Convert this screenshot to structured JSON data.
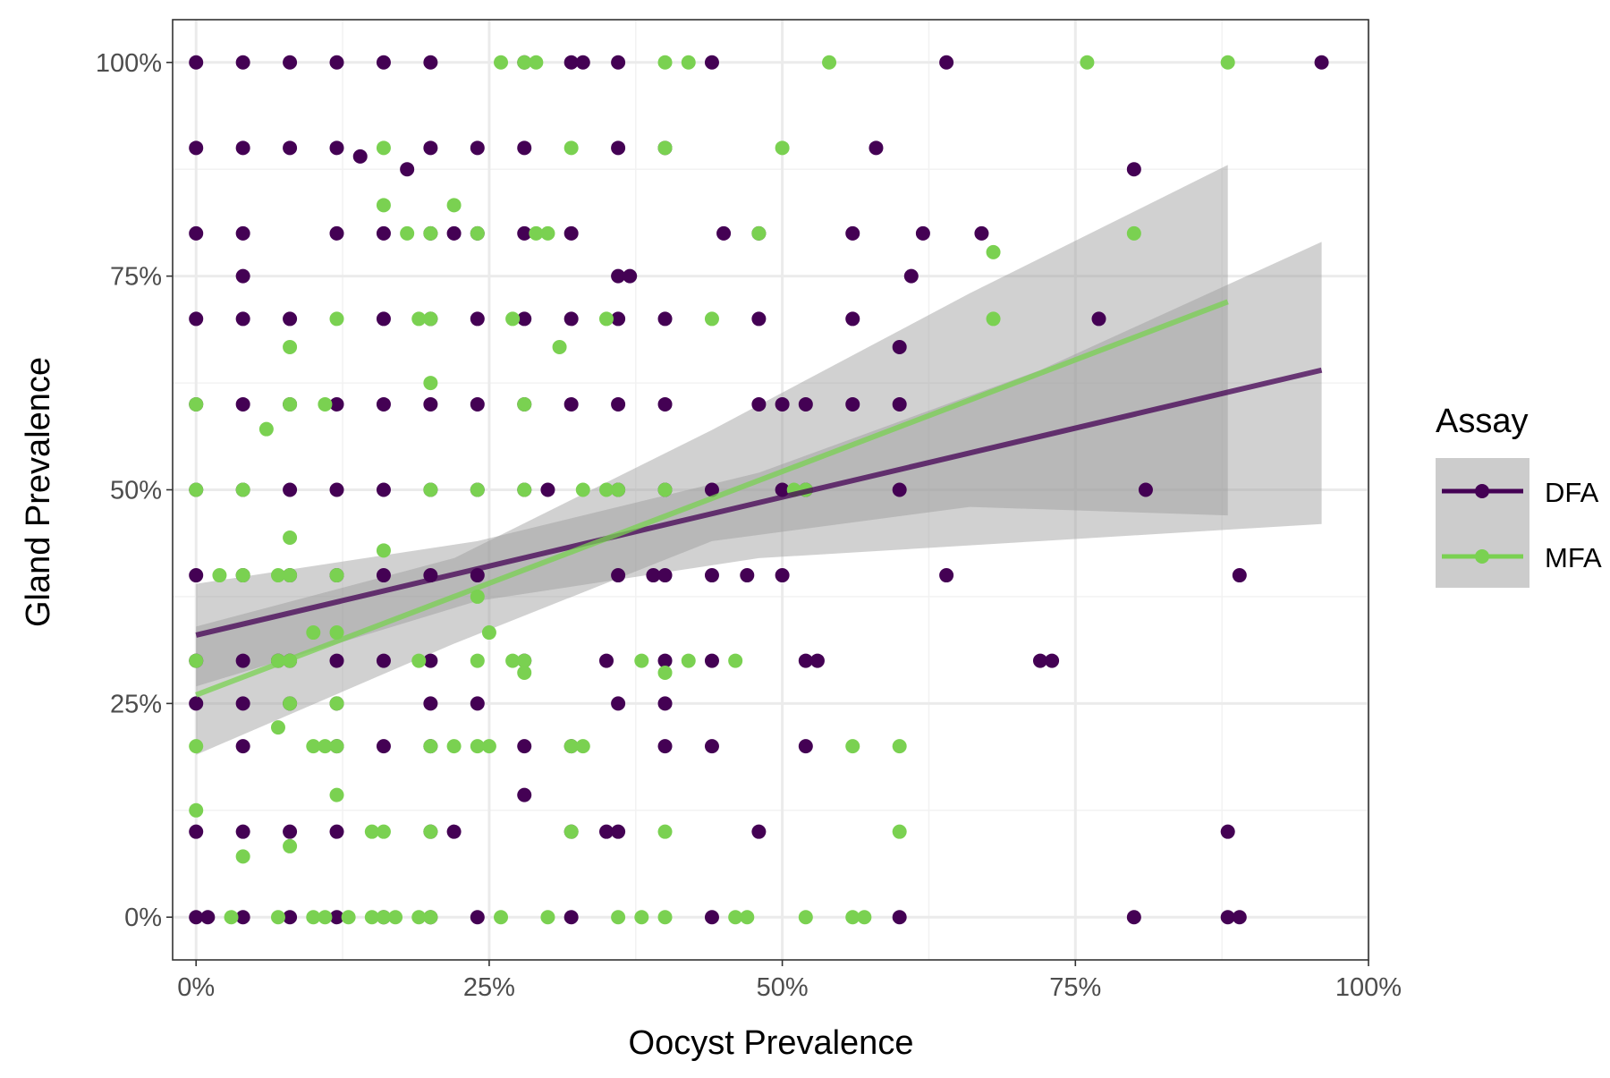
{
  "chart_data": {
    "type": "scatter",
    "xlabel": "Oocyst Prevalence",
    "ylabel": "Gland Prevalence",
    "xlim": [
      -0.02,
      1.0
    ],
    "ylim": [
      -0.05,
      1.05
    ],
    "x_ticks": [
      0,
      0.25,
      0.5,
      0.75,
      1.0
    ],
    "x_tick_labels": [
      "0%",
      "25%",
      "50%",
      "75%",
      "100%"
    ],
    "y_ticks": [
      0,
      0.25,
      0.5,
      0.75,
      1.0
    ],
    "y_tick_labels": [
      "0%",
      "25%",
      "50%",
      "75%",
      "100%"
    ],
    "grid": true,
    "legend": {
      "title": "Assay",
      "placement": "right",
      "entries": [
        "DFA",
        "MFA"
      ]
    },
    "colors": {
      "DFA": "#440154",
      "MFA": "#7AD151",
      "ribbon": "#999999"
    },
    "series": [
      {
        "name": "DFA",
        "color": "#440154",
        "x": [
          0,
          0.04,
          0.08,
          0.12,
          0.16,
          0.2,
          0.28,
          0.32,
          0.33,
          0.36,
          0.44,
          0.64,
          0.96,
          0,
          0.04,
          0.08,
          0.12,
          0.14,
          0.18,
          0.2,
          0.24,
          0.28,
          0.36,
          0.4,
          0.58,
          0,
          0.04,
          0.12,
          0.16,
          0.2,
          0.22,
          0.24,
          0.28,
          0.32,
          0.45,
          0.48,
          0.56,
          0.62,
          0.67,
          0.8,
          0.04,
          0.36,
          0.37,
          0.61,
          0,
          0.04,
          0.08,
          0.16,
          0.2,
          0.24,
          0.28,
          0.32,
          0.36,
          0.4,
          0.48,
          0.56,
          0.6,
          0.77,
          0,
          0.04,
          0.08,
          0.12,
          0.16,
          0.2,
          0.24,
          0.28,
          0.32,
          0.36,
          0.4,
          0.48,
          0.5,
          0.52,
          0.56,
          0.6,
          0,
          0.04,
          0.08,
          0.12,
          0.16,
          0.2,
          0.24,
          0.28,
          0.3,
          0.36,
          0.4,
          0.44,
          0.5,
          0.52,
          0.6,
          0.81,
          0,
          0.04,
          0.08,
          0.12,
          0.16,
          0.2,
          0.24,
          0.36,
          0.39,
          0.4,
          0.44,
          0.47,
          0.5,
          0.64,
          0.89,
          0,
          0.04,
          0.07,
          0.08,
          0.12,
          0.16,
          0.2,
          0.28,
          0.35,
          0.4,
          0.44,
          0.52,
          0.53,
          0.72,
          0.73,
          0,
          0.04,
          0.08,
          0.12,
          0.2,
          0.24,
          0.36,
          0.4,
          0.04,
          0.12,
          0.16,
          0.2,
          0.28,
          0.32,
          0.4,
          0.44,
          0.52,
          0,
          0.04,
          0.08,
          0.12,
          0.2,
          0.22,
          0.28,
          0.32,
          0.35,
          0.36,
          0.48,
          0.88,
          0,
          0.01,
          0.04,
          0.08,
          0.12,
          0.16,
          0.2,
          0.24,
          0.32,
          0.44,
          0.6,
          0.8,
          0.88,
          0.89
        ],
        "y": [
          1,
          1,
          1,
          1,
          1,
          1,
          1,
          1,
          1,
          1,
          1,
          1,
          1,
          0.9,
          0.9,
          0.9,
          0.9,
          0.89,
          0.875,
          0.9,
          0.9,
          0.9,
          0.9,
          0.9,
          0.9,
          0.8,
          0.8,
          0.8,
          0.8,
          0.8,
          0.8,
          0.8,
          0.8,
          0.8,
          0.8,
          0.8,
          0.8,
          0.8,
          0.8,
          0.875,
          0.75,
          0.75,
          0.75,
          0.75,
          0.7,
          0.7,
          0.7,
          0.7,
          0.7,
          0.7,
          0.7,
          0.7,
          0.7,
          0.7,
          0.7,
          0.7,
          0.667,
          0.7,
          0.6,
          0.6,
          0.6,
          0.6,
          0.6,
          0.6,
          0.6,
          0.6,
          0.6,
          0.6,
          0.6,
          0.6,
          0.6,
          0.6,
          0.6,
          0.6,
          0.5,
          0.5,
          0.5,
          0.5,
          0.5,
          0.5,
          0.5,
          0.5,
          0.5,
          0.5,
          0.5,
          0.5,
          0.5,
          0.5,
          0.5,
          0.5,
          0.4,
          0.4,
          0.4,
          0.4,
          0.4,
          0.4,
          0.4,
          0.4,
          0.4,
          0.4,
          0.4,
          0.4,
          0.4,
          0.4,
          0.4,
          0.3,
          0.3,
          0.3,
          0.3,
          0.3,
          0.3,
          0.3,
          0.3,
          0.3,
          0.3,
          0.3,
          0.3,
          0.3,
          0.3,
          0.3,
          0.25,
          0.25,
          0.25,
          0.25,
          0.25,
          0.25,
          0.25,
          0.25,
          0.2,
          0.2,
          0.2,
          0.2,
          0.2,
          0.2,
          0.2,
          0.2,
          0.2,
          0.1,
          0.1,
          0.1,
          0.1,
          0.1,
          0.1,
          0.143,
          0.1,
          0.1,
          0.1,
          0.1,
          0.1,
          0,
          0,
          0,
          0,
          0,
          0,
          0,
          0,
          0,
          0,
          0,
          0,
          0,
          0
        ]
      },
      {
        "name": "MFA",
        "color": "#7AD151",
        "x": [
          0.26,
          0.28,
          0.29,
          0.4,
          0.42,
          0.54,
          0.76,
          0.88,
          0.16,
          0.32,
          0.4,
          0.5,
          0.16,
          0.22,
          0.18,
          0.2,
          0.24,
          0.29,
          0.3,
          0.48,
          0.8,
          0.68,
          0.12,
          0.19,
          0.2,
          0.27,
          0.31,
          0.35,
          0.44,
          0.68,
          0.08,
          0,
          0.08,
          0.11,
          0.2,
          0.28,
          0.06,
          0,
          0.04,
          0.2,
          0.24,
          0.28,
          0.33,
          0.35,
          0.36,
          0.4,
          0.51,
          0.52,
          0.08,
          0.16,
          0.02,
          0.04,
          0.08,
          0.12,
          0.24,
          0.07,
          0,
          0.07,
          0.08,
          0.1,
          0.12,
          0.19,
          0.24,
          0.25,
          0.27,
          0.28,
          0.38,
          0.4,
          0.42,
          0.46,
          0.08,
          0.12,
          0.28,
          0.07,
          0,
          0.1,
          0.11,
          0.12,
          0.2,
          0.22,
          0.24,
          0.25,
          0.32,
          0.33,
          0.56,
          0.6,
          0,
          0.12,
          0.15,
          0.16,
          0.2,
          0.32,
          0.4,
          0.6,
          0.04,
          0.08,
          0.03,
          0.07,
          0.1,
          0.11,
          0.13,
          0.15,
          0.16,
          0.17,
          0.19,
          0.2,
          0.26,
          0.3,
          0.36,
          0.38,
          0.4,
          0.46,
          0.47,
          0.52,
          0.56,
          0.57
        ],
        "y": [
          1,
          1,
          1,
          1,
          1,
          1,
          1,
          1,
          0.9,
          0.9,
          0.9,
          0.9,
          0.833,
          0.833,
          0.8,
          0.8,
          0.8,
          0.8,
          0.8,
          0.8,
          0.8,
          0.778,
          0.7,
          0.7,
          0.7,
          0.7,
          0.667,
          0.7,
          0.7,
          0.7,
          0.667,
          0.6,
          0.6,
          0.6,
          0.625,
          0.6,
          0.571,
          0.5,
          0.5,
          0.5,
          0.5,
          0.5,
          0.5,
          0.5,
          0.5,
          0.5,
          0.5,
          0.5,
          0.444,
          0.429,
          0.4,
          0.4,
          0.4,
          0.4,
          0.375,
          0.4,
          0.3,
          0.3,
          0.3,
          0.333,
          0.333,
          0.3,
          0.3,
          0.333,
          0.3,
          0.3,
          0.3,
          0.286,
          0.3,
          0.3,
          0.25,
          0.25,
          0.286,
          0.222,
          0.2,
          0.2,
          0.2,
          0.2,
          0.2,
          0.2,
          0.2,
          0.2,
          0.2,
          0.2,
          0.2,
          0.2,
          0.125,
          0.143,
          0.1,
          0.1,
          0.1,
          0.1,
          0.1,
          0.1,
          0.071,
          0.083,
          0,
          0,
          0,
          0,
          0,
          0,
          0,
          0,
          0,
          0,
          0,
          0,
          0,
          0,
          0,
          0,
          0,
          0,
          0,
          0
        ]
      }
    ],
    "fits": [
      {
        "name": "DFA",
        "type": "linear",
        "x": [
          0,
          0.96
        ],
        "y": [
          0.33,
          0.64
        ],
        "ci_x": [
          0,
          0.24,
          0.48,
          0.72,
          0.96
        ],
        "ci_low": [
          0.27,
          0.37,
          0.42,
          0.44,
          0.46
        ],
        "ci_high": [
          0.39,
          0.44,
          0.52,
          0.64,
          0.79
        ]
      },
      {
        "name": "MFA",
        "type": "linear",
        "x": [
          0,
          0.88
        ],
        "y": [
          0.26,
          0.72
        ],
        "ci_x": [
          0,
          0.22,
          0.44,
          0.66,
          0.88
        ],
        "ci_low": [
          0.19,
          0.32,
          0.44,
          0.48,
          0.47
        ],
        "ci_high": [
          0.34,
          0.42,
          0.57,
          0.73,
          0.88
        ]
      }
    ]
  }
}
